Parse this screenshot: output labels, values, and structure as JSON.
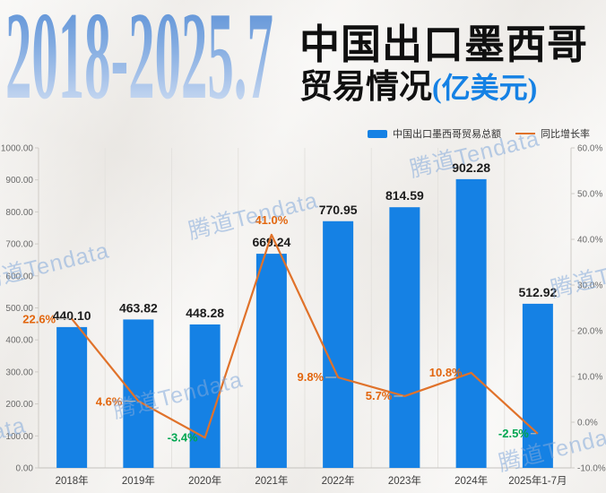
{
  "header": {
    "year_range": "2018-2025.7",
    "title_main": "中国出口墨西哥",
    "title_sub": "贸易情况",
    "title_unit": "(亿美元)"
  },
  "legend": {
    "bar_label": "中国出口墨西哥贸易总额",
    "line_label": "同比增长率"
  },
  "watermark": {
    "text": "腾道Tendata"
  },
  "colors": {
    "bar": "#1581e4",
    "line": "#e0722a",
    "pct_positive": "#e2660e",
    "pct_negative": "#00a651",
    "grid": "#e4e2de",
    "axis": "#cfccc7",
    "connector": "#b9b7b3"
  },
  "chart_data": {
    "type": "bar",
    "combo": "bar+line",
    "title": "2018-2025.7 中国出口墨西哥贸易情况(亿美元)",
    "categories": [
      "2018年",
      "2019年",
      "2020年",
      "2021年",
      "2022年",
      "2023年",
      "2024年",
      "2025年1-7月"
    ],
    "series": [
      {
        "name": "中国出口墨西哥贸易总额",
        "type": "bar",
        "unit": "亿美元",
        "axis": "left",
        "values": [
          440.1,
          463.82,
          448.28,
          669.24,
          770.95,
          814.59,
          902.28,
          512.92
        ]
      },
      {
        "name": "同比增长率",
        "type": "line",
        "unit": "%",
        "axis": "right",
        "values": [
          22.6,
          4.6,
          -3.4,
          41.0,
          9.8,
          5.7,
          10.8,
          -2.5
        ]
      }
    ],
    "left_axis": {
      "min": 0,
      "max": 1000,
      "step": 100
    },
    "right_axis": {
      "min": -10,
      "max": 60,
      "step": 10
    },
    "grid": "vertical-only",
    "legend_position": "top-right"
  }
}
